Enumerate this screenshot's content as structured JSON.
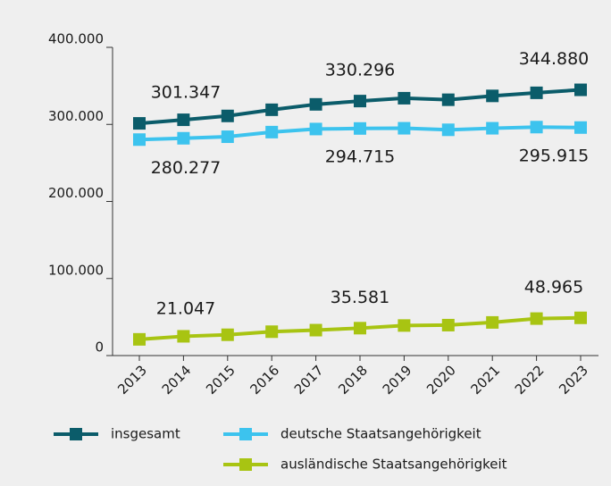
{
  "chart_data": {
    "type": "line",
    "categories": [
      "2013",
      "2014",
      "2015",
      "2016",
      "2017",
      "2018",
      "2019",
      "2020",
      "2021",
      "2022",
      "2023"
    ],
    "ylim": [
      0,
      400000
    ],
    "yticks": [
      0,
      {
        "value": 100000,
        "label": "100.000"
      },
      {
        "value": 200000,
        "label": "200.000"
      },
      {
        "value": 300000,
        "label": "300.000"
      },
      {
        "value": 400000,
        "label": "400.000"
      }
    ],
    "grid": false,
    "legend": "bottom",
    "series": [
      {
        "name": "insgesamt",
        "color": "#0b5c6a",
        "values": [
          301347,
          306000,
          311000,
          319000,
          326000,
          330296,
          334000,
          332000,
          337000,
          341000,
          344880
        ],
        "value_labels": [
          "301.347",
          null,
          null,
          null,
          null,
          "330.296",
          null,
          null,
          null,
          null,
          "344.880"
        ]
      },
      {
        "name": "deutsche Staatsangehörigkeit",
        "color": "#3cc3ee",
        "values": [
          280277,
          282000,
          284000,
          290000,
          294000,
          294715,
          295000,
          293000,
          295000,
          296500,
          295915
        ],
        "value_labels": [
          "280.277",
          null,
          null,
          null,
          null,
          "294.715",
          null,
          null,
          null,
          null,
          "295.915"
        ]
      },
      {
        "name": "ausländische Staatsangehörigkeit",
        "color": "#a8c412",
        "values": [
          21047,
          25000,
          27000,
          31000,
          33000,
          35581,
          39000,
          39500,
          43000,
          48000,
          48965
        ],
        "value_labels": [
          "21.047",
          null,
          null,
          null,
          null,
          "35.581",
          null,
          null,
          null,
          null,
          "48.965"
        ]
      }
    ]
  }
}
